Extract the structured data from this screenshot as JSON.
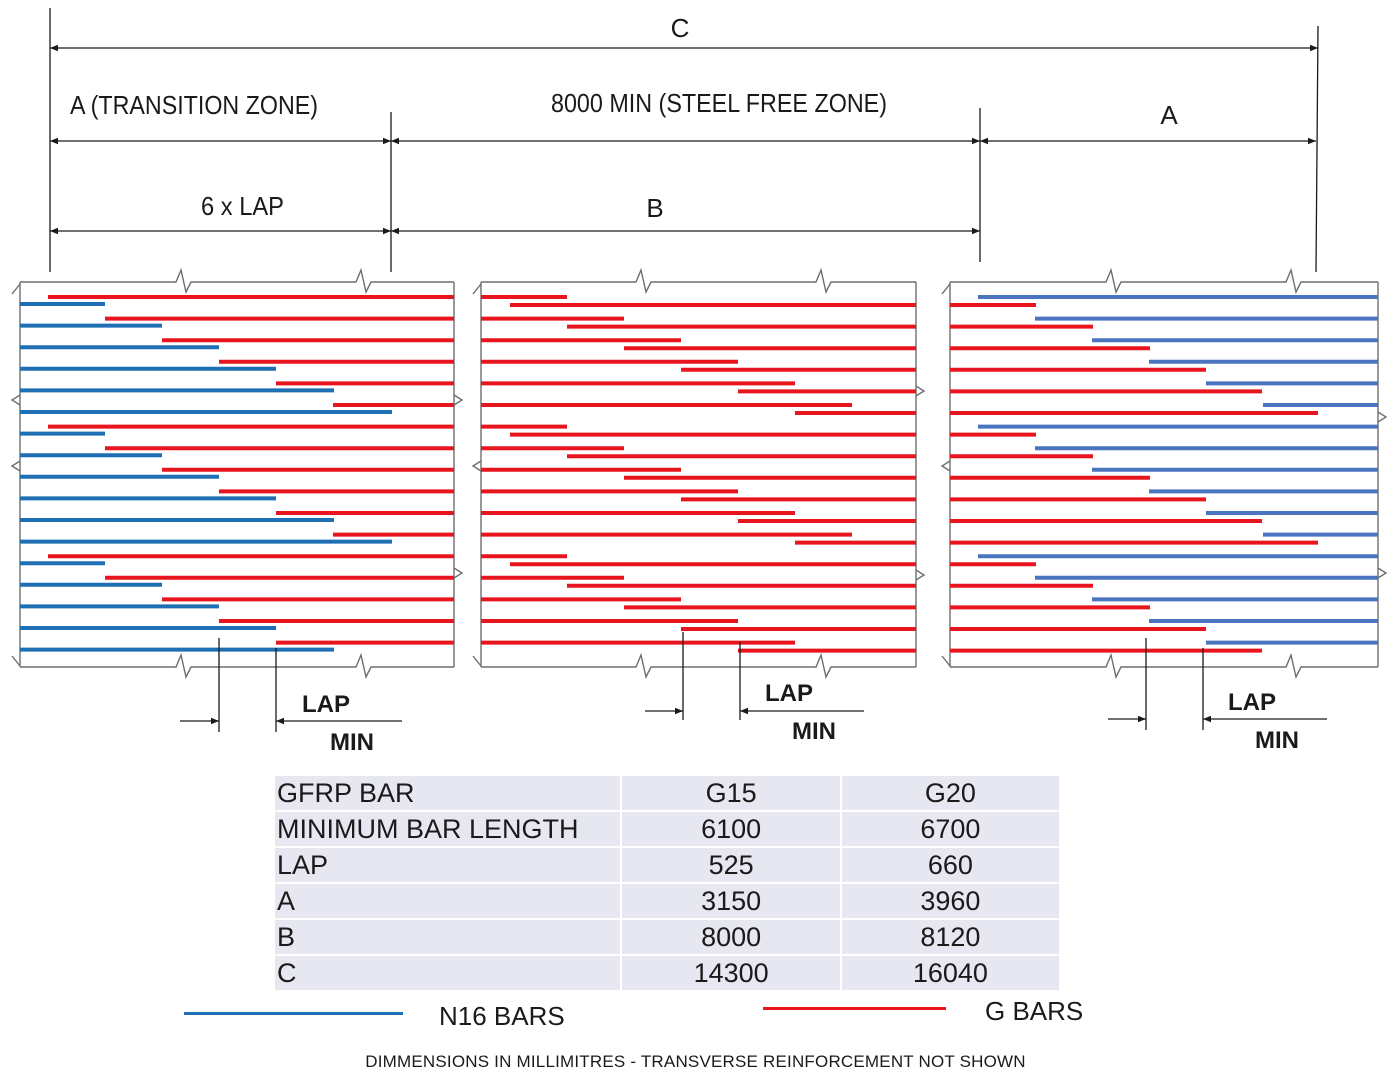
{
  "dimensions": {
    "c_label": "C",
    "a_transition_label": "A (TRANSITION  ZONE)",
    "steel_free_label": "8000 MIN (STEEL FREE ZONE)",
    "a_right_label": "A",
    "six_lap_label": "6 x LAP",
    "b_label": "B"
  },
  "lap_callouts": [
    {
      "lap": "LAP",
      "min": "MIN"
    },
    {
      "lap": "LAP",
      "min": "MIN"
    },
    {
      "lap": "LAP",
      "min": "MIN"
    }
  ],
  "table": {
    "rows": [
      [
        "GFRP BAR",
        "G15",
        "G20"
      ],
      [
        "MINIMUM  BAR LENGTH",
        "6100",
        "6700"
      ],
      [
        "LAP",
        "525",
        "660"
      ],
      [
        "A",
        "3150",
        "3960"
      ],
      [
        "B",
        "8000",
        "8120"
      ],
      [
        "C",
        "14300",
        "16040"
      ]
    ]
  },
  "legend": {
    "n16_label": "N16 BARS",
    "g_label": "G BARS"
  },
  "footnote": "DIMMENSIONS IN MILLIMITRES - TRANSVERSE REINFORCEMENT NOT SHOWN",
  "colors": {
    "n16_bar": "#1f6fb5",
    "n16_bar_right_panel": "#4a74c0",
    "g_bar": "#e8141e",
    "outline": "#6e6e6e",
    "dimension_line": "#1a1a1a",
    "table_background": "#e6e7f0"
  }
}
